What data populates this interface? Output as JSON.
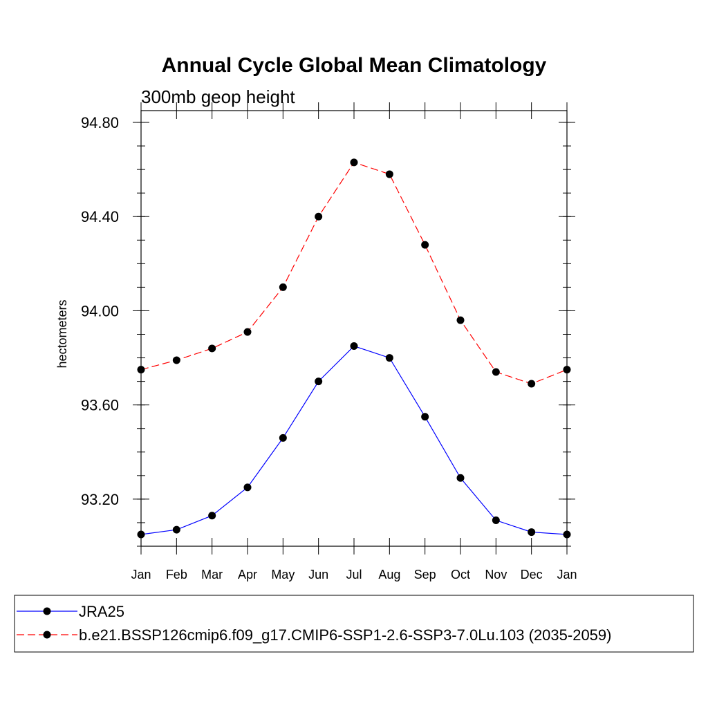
{
  "chart_data": {
    "type": "line",
    "title": "Annual Cycle Global Mean Climatology",
    "subtitle": "300mb geop height",
    "xlabel": "",
    "ylabel": "hectometers",
    "categories": [
      "Jan",
      "Feb",
      "Mar",
      "Apr",
      "May",
      "Jun",
      "Jul",
      "Aug",
      "Sep",
      "Oct",
      "Nov",
      "Dec",
      "Jan"
    ],
    "ylim": [
      93.0,
      94.85
    ],
    "yticks": [
      "93.20",
      "93.60",
      "94.00",
      "94.40",
      "94.80"
    ],
    "grid": false,
    "legend_position": "bottom",
    "series": [
      {
        "name": "JRA25",
        "color": "#0000ff",
        "dash": "solid",
        "marker": "filled-circle",
        "values": [
          93.05,
          93.07,
          93.13,
          93.25,
          93.46,
          93.7,
          93.85,
          93.8,
          93.55,
          93.29,
          93.11,
          93.06,
          93.05
        ]
      },
      {
        "name": "b.e21.BSSP126cmip6.f09_g17.CMIP6-SSP1-2.6-SSP3-7.0Lu.103 (2035-2059)",
        "color": "#ff0000",
        "dash": "dashed",
        "marker": "filled-circle",
        "values": [
          93.75,
          93.79,
          93.84,
          93.91,
          94.1,
          94.4,
          94.63,
          94.58,
          94.28,
          93.96,
          93.74,
          93.69,
          93.75
        ]
      }
    ]
  }
}
